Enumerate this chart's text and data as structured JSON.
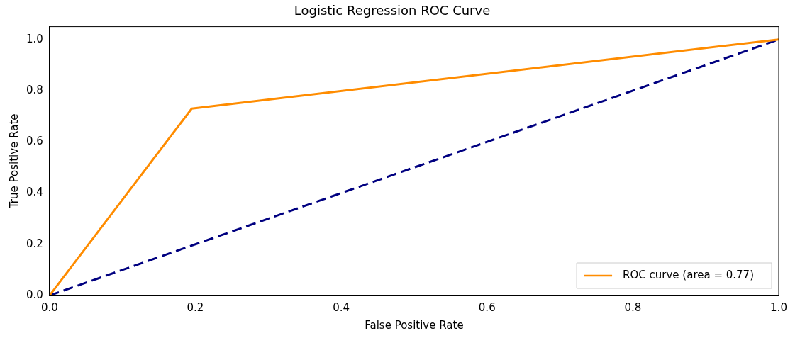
{
  "chart_data": {
    "type": "line",
    "title": "Logistic Regression ROC Curve",
    "xlabel": "False Positive Rate",
    "ylabel": "True Positive Rate",
    "xlim": [
      0,
      1
    ],
    "ylim": [
      0,
      1.05
    ],
    "xticks": [
      {
        "value": 0,
        "label": "0.0"
      },
      {
        "value": 0.2,
        "label": "0.2"
      },
      {
        "value": 0.4,
        "label": "0.4"
      },
      {
        "value": 0.6,
        "label": "0.6"
      },
      {
        "value": 0.8,
        "label": "0.8"
      },
      {
        "value": 1,
        "label": "1.0"
      }
    ],
    "yticks": [
      {
        "value": 0,
        "label": "0.0"
      },
      {
        "value": 0.2,
        "label": "0.2"
      },
      {
        "value": 0.4,
        "label": "0.4"
      },
      {
        "value": 0.6,
        "label": "0.6"
      },
      {
        "value": 0.8,
        "label": "0.8"
      },
      {
        "value": 1,
        "label": "1.0"
      }
    ],
    "series": [
      {
        "name": "ROC curve (area = 0.77)",
        "color": "#ff8c00",
        "x": [
          0,
          0.195,
          1
        ],
        "values": [
          0,
          0.73,
          1
        ],
        "line_style": "solid"
      },
      {
        "color": "#000080",
        "x": [
          0,
          1
        ],
        "values": [
          0,
          1
        ],
        "line_style": "dashed"
      }
    ],
    "legend": "bottom right",
    "marker": "none"
  }
}
